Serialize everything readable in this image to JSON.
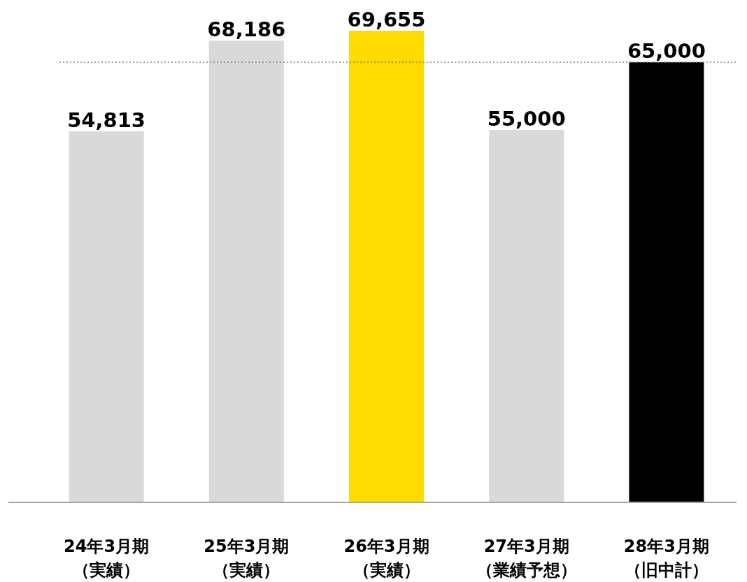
{
  "chart_data": {
    "type": "bar",
    "categories": [
      "24年3月期（実績）",
      "25年3月期（実績）",
      "26年3月期（実績）",
      "27年3月期（業績予想）",
      "28年3月期（旧中計）"
    ],
    "values": [
      54813,
      68186,
      69655,
      55000,
      65000
    ],
    "value_labels": [
      "54,813",
      "68,186",
      "69,655",
      "55,000",
      "65,000"
    ],
    "colors": [
      "#d9d9d9",
      "#d9d9d9",
      "#ffda00",
      "#d9d9d9",
      "#000000"
    ],
    "ref_lines": [
      {
        "axis": "y",
        "value": 65000,
        "color": "#808080",
        "line_style": "dotted"
      }
    ]
  }
}
